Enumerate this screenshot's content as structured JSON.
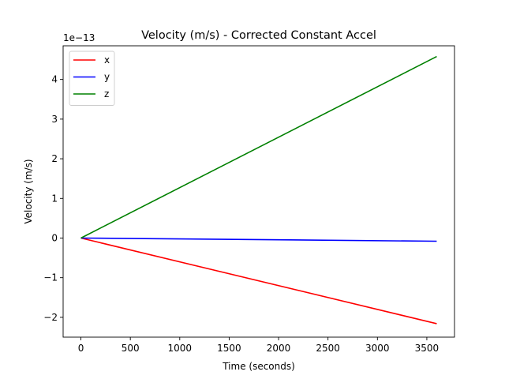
{
  "chart_data": {
    "type": "line",
    "title": "Velocity (m/s) - Corrected Constant Accel",
    "xlabel": "Time (seconds)",
    "ylabel": "Velocity (m/s)",
    "y_scale_label": "1e−13",
    "xlim": [
      -180,
      3780
    ],
    "ylim": [
      -2.5,
      4.85
    ],
    "x_ticks": [
      0,
      500,
      1000,
      1500,
      2000,
      2500,
      3000,
      3500
    ],
    "y_ticks": [
      -2,
      -1,
      0,
      1,
      2,
      3,
      4
    ],
    "x_tick_labels": [
      "0",
      "500",
      "1000",
      "1500",
      "2000",
      "2500",
      "3000",
      "3500"
    ],
    "y_tick_labels": [
      "−2",
      "−1",
      "0",
      "1",
      "2",
      "3",
      "4"
    ],
    "grid": false,
    "legend_position": "top-left",
    "series": [
      {
        "name": "x",
        "color": "#ff0000",
        "x": [
          0,
          3600
        ],
        "y": [
          0,
          -2.16
        ]
      },
      {
        "name": "y",
        "color": "#0000ff",
        "x": [
          0,
          3600
        ],
        "y": [
          0,
          -0.08
        ]
      },
      {
        "name": "z",
        "color": "#008000",
        "x": [
          0,
          3600
        ],
        "y": [
          0,
          4.58
        ]
      }
    ]
  }
}
